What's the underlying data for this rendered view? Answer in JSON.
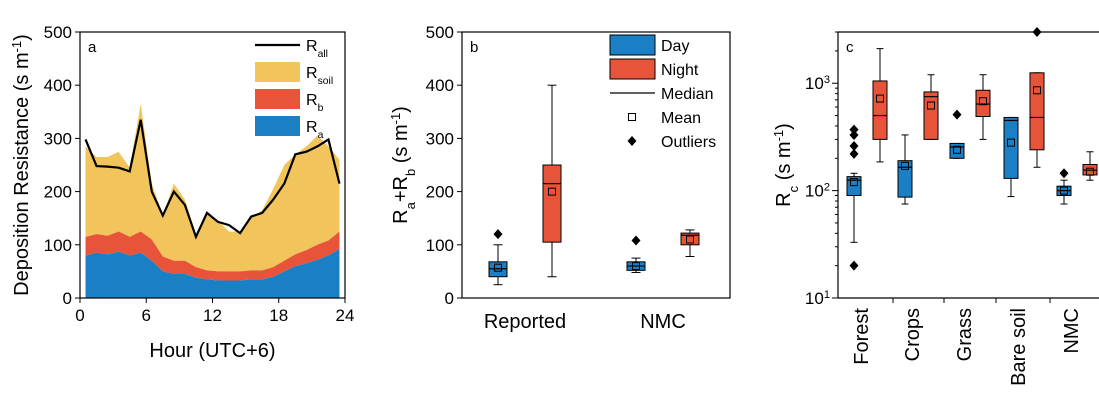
{
  "colors": {
    "ra": "#1a7fc4",
    "rb": "#e8543a",
    "rsoil": "#f2c45c",
    "rall": "#000000",
    "day": "#1a7fc4",
    "night": "#e8543a"
  },
  "chart_data": [
    {
      "panel": "a",
      "type": "area",
      "xlabel": "Hour (UTC+6)",
      "ylabel": "Deposition Resistance (s m",
      "ylabel_sup": "-1",
      "ylabel_end": ")",
      "xlim": [
        0,
        24
      ],
      "ylim": [
        0,
        500
      ],
      "xticks": [
        0,
        6,
        12,
        18,
        24
      ],
      "yticks": [
        0,
        100,
        200,
        300,
        400,
        500
      ],
      "legend": [
        {
          "main": "R",
          "sub": "all",
          "style": "line",
          "color": "#000000"
        },
        {
          "main": "R",
          "sub": "soil",
          "style": "fill",
          "color": "#f2c45c"
        },
        {
          "main": "R",
          "sub": "b",
          "style": "fill",
          "color": "#e8543a"
        },
        {
          "main": "R",
          "sub": "a",
          "style": "fill",
          "color": "#1a7fc4"
        }
      ],
      "x": [
        0.5,
        1.5,
        2.5,
        3.5,
        4.5,
        5.5,
        6.5,
        7.5,
        8.5,
        9.5,
        10.5,
        11.5,
        12.5,
        13.5,
        14.5,
        15.5,
        16.5,
        17.5,
        18.5,
        19.5,
        20.5,
        21.5,
        22.5,
        23.5
      ],
      "ra": [
        80,
        85,
        82,
        87,
        80,
        85,
        70,
        50,
        45,
        45,
        38,
        35,
        33,
        33,
        33,
        35,
        35,
        40,
        50,
        60,
        65,
        72,
        80,
        92
      ],
      "rab": [
        115,
        120,
        117,
        125,
        115,
        125,
        110,
        78,
        70,
        70,
        58,
        52,
        50,
        50,
        50,
        52,
        52,
        58,
        70,
        82,
        90,
        100,
        108,
        125
      ],
      "rall_fill": [
        285,
        265,
        265,
        275,
        245,
        365,
        215,
        155,
        215,
        185,
        120,
        160,
        145,
        125,
        125,
        150,
        165,
        205,
        250,
        270,
        285,
        305,
        285,
        260
      ],
      "rall": [
        298,
        248,
        247,
        245,
        238,
        335,
        200,
        155,
        200,
        175,
        115,
        160,
        143,
        137,
        122,
        153,
        160,
        185,
        215,
        270,
        275,
        285,
        298,
        215
      ]
    },
    {
      "panel": "b",
      "type": "box",
      "ylabel_parts": [
        "R",
        "a",
        "+R",
        "b",
        " (s m",
        "-1",
        ")"
      ],
      "ylim": [
        0,
        500
      ],
      "yticks": [
        0,
        100,
        200,
        300,
        400,
        500
      ],
      "categories": [
        "Reported",
        "NMC"
      ],
      "legend": [
        {
          "label": "Day",
          "style": "box",
          "color": "#1a7fc4"
        },
        {
          "label": "Night",
          "style": "box",
          "color": "#e8543a"
        },
        {
          "label": "Median",
          "style": "line"
        },
        {
          "label": "Mean",
          "style": "square"
        },
        {
          "label": "Outliers",
          "style": "diamond"
        }
      ],
      "boxes": [
        {
          "category": "Reported",
          "series": "Day",
          "whisker_low": 25,
          "q1": 40,
          "median": 55,
          "q3": 68,
          "whisker_high": 100,
          "mean": 57,
          "outliers": [
            120
          ]
        },
        {
          "category": "Reported",
          "series": "Night",
          "whisker_low": 40,
          "q1": 105,
          "median": 215,
          "q3": 250,
          "whisker_high": 400,
          "mean": 200,
          "outliers": []
        },
        {
          "category": "NMC",
          "series": "Day",
          "whisker_low": 48,
          "q1": 52,
          "median": 60,
          "q3": 68,
          "whisker_high": 75,
          "mean": 60,
          "outliers": [
            108
          ]
        },
        {
          "category": "NMC",
          "series": "Night",
          "whisker_low": 78,
          "q1": 100,
          "median": 118,
          "q3": 122,
          "whisker_high": 128,
          "mean": 110,
          "outliers": []
        }
      ]
    },
    {
      "panel": "c",
      "type": "box",
      "yscale": "log",
      "ylabel_parts": [
        "R",
        "c",
        " (s m",
        "-1",
        ")"
      ],
      "ylim": [
        10,
        3000
      ],
      "yticks": [
        10,
        100,
        1000
      ],
      "ytick_labels": [
        [
          "10",
          "1"
        ],
        [
          "10",
          "2"
        ],
        [
          "10",
          "3"
        ]
      ],
      "categories": [
        "Forest",
        "Crops",
        "Grass",
        "Bare soil",
        "NMC"
      ],
      "boxes": [
        {
          "category": "Forest",
          "series": "Day",
          "whisker_low": 33,
          "q1": 90,
          "median": 125,
          "q3": 135,
          "whisker_high": 145,
          "mean": 120,
          "outliers": [
            20,
            220,
            260,
            330,
            370
          ]
        },
        {
          "category": "Forest",
          "series": "Night",
          "whisker_low": 185,
          "q1": 300,
          "median": 500,
          "q3": 1050,
          "whisker_high": 2100,
          "mean": 720,
          "outliers": []
        },
        {
          "category": "Crops",
          "series": "Day",
          "whisker_low": 75,
          "q1": 87,
          "median": 165,
          "q3": 190,
          "whisker_high": 330,
          "mean": 170,
          "outliers": []
        },
        {
          "category": "Crops",
          "series": "Night",
          "whisker_low": 300,
          "q1": 300,
          "median": 750,
          "q3": 830,
          "whisker_high": 1200,
          "mean": 620,
          "outliers": []
        },
        {
          "category": "Grass",
          "series": "Day",
          "whisker_low": 200,
          "q1": 200,
          "median": 255,
          "q3": 275,
          "whisker_high": 275,
          "mean": 240,
          "outliers": [
            510
          ]
        },
        {
          "category": "Grass",
          "series": "Night",
          "whisker_low": 300,
          "q1": 490,
          "median": 640,
          "q3": 860,
          "whisker_high": 1200,
          "mean": 680,
          "outliers": []
        },
        {
          "category": "Bare soil",
          "series": "Day",
          "whisker_low": 88,
          "q1": 130,
          "median": 450,
          "q3": 480,
          "whisker_high": 480,
          "mean": 280,
          "outliers": []
        },
        {
          "category": "Bare soil",
          "series": "Night",
          "whisker_low": 165,
          "q1": 240,
          "median": 480,
          "q3": 1250,
          "whisker_high": 1250,
          "mean": 860,
          "outliers": [
            3000
          ]
        },
        {
          "category": "NMC",
          "series": "Day",
          "whisker_low": 75,
          "q1": 90,
          "median": 100,
          "q3": 110,
          "whisker_high": 125,
          "mean": 100,
          "outliers": [
            145
          ]
        },
        {
          "category": "NMC",
          "series": "Night",
          "whisker_low": 125,
          "q1": 140,
          "median": 155,
          "q3": 175,
          "whisker_high": 230,
          "mean": 150,
          "outliers": []
        }
      ]
    }
  ]
}
